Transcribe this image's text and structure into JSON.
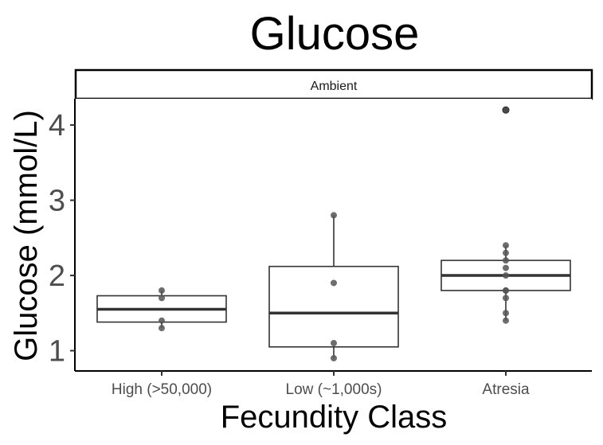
{
  "chart_data": {
    "type": "boxplot",
    "title": "Glucose",
    "facet": "Ambient",
    "xlabel": "Fecundity Class",
    "ylabel": "Glucose (mmol/L)",
    "categories": [
      "High (>50,000)",
      "Low (~1,000s)",
      "Atresia"
    ],
    "y_ticks": [
      1,
      2,
      3,
      4
    ],
    "ylim": [
      0.73,
      4.35
    ],
    "grid": false,
    "boxes": [
      {
        "category": "High (>50,000)",
        "whisker_low": 1.3,
        "q1": 1.38,
        "median": 1.55,
        "q3": 1.73,
        "whisker_high": 1.8,
        "points": [
          1.3,
          1.4,
          1.7,
          1.8
        ]
      },
      {
        "category": "Low (~1,000s)",
        "whisker_low": 0.9,
        "q1": 1.05,
        "median": 1.5,
        "q3": 2.12,
        "whisker_high": 2.8,
        "points": [
          0.9,
          1.1,
          1.9,
          2.8
        ]
      },
      {
        "category": "Atresia",
        "whisker_low": 1.4,
        "q1": 1.8,
        "median": 2.0,
        "q3": 2.2,
        "whisker_high": 2.4,
        "points": [
          1.4,
          1.5,
          1.7,
          1.8,
          1.8,
          2.0,
          2.1,
          2.2,
          2.3,
          2.4,
          4.2
        ],
        "outliers": [
          4.2
        ]
      }
    ]
  }
}
